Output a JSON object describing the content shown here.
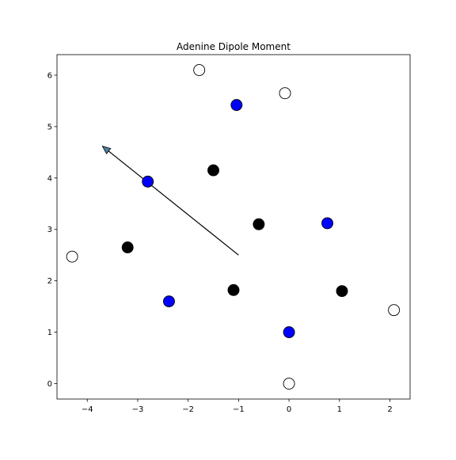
{
  "chart_data": {
    "type": "scatter",
    "title": "Adenine Dipole Moment",
    "xlabel": "",
    "ylabel": "",
    "xlim": [
      -4.6,
      2.4
    ],
    "ylim": [
      -0.3,
      6.4
    ],
    "xticks": [
      -4,
      -3,
      -2,
      -1,
      0,
      1,
      2
    ],
    "yticks": [
      0,
      1,
      2,
      3,
      4,
      5,
      6
    ],
    "grid": false,
    "series": [
      {
        "color": "#0000ff",
        "points": [
          [
            -1.04,
            5.42
          ],
          [
            -2.8,
            3.93
          ],
          [
            0.76,
            3.12
          ],
          [
            -2.38,
            1.6
          ],
          [
            0.0,
            1.0
          ]
        ]
      },
      {
        "color": "#000000",
        "points": [
          [
            -1.5,
            4.15
          ],
          [
            -0.6,
            3.1
          ],
          [
            -3.2,
            2.65
          ],
          [
            -1.1,
            1.82
          ],
          [
            1.05,
            1.8
          ]
        ]
      },
      {
        "color": "#ffffff",
        "points": [
          [
            -1.78,
            6.1
          ],
          [
            -0.08,
            5.65
          ],
          [
            -4.3,
            2.47
          ],
          [
            2.08,
            1.43
          ],
          [
            0.0,
            0.0
          ]
        ]
      }
    ],
    "arrow": {
      "start": [
        -1.0,
        2.5
      ],
      "end": [
        -3.7,
        4.62
      ],
      "color": "#4f7fa0"
    }
  }
}
